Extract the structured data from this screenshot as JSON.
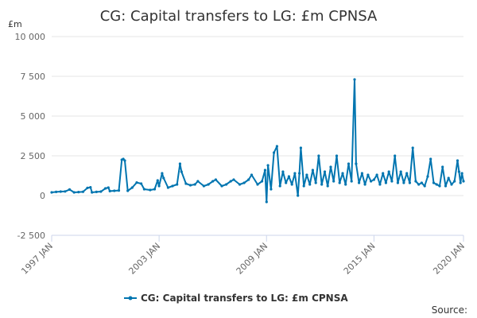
{
  "page": {
    "title": "CG: Capital transfers to LG: £m CPNSA",
    "source_label": "Source:"
  },
  "colors": {
    "series": "#0075b0",
    "grid": "#e6e6e6",
    "axis": "#ccd6eb",
    "text": "#333333",
    "tick_text": "#666666"
  },
  "chart_data": {
    "type": "line",
    "title": "CG: Capital transfers to LG: £m CPNSA",
    "ylabel": "£m",
    "xlabel": "",
    "ylim": [
      -2500,
      10000
    ],
    "yticks": [
      -2500,
      0,
      2500,
      5000,
      7500,
      10000
    ],
    "ytick_labels": [
      "-2 500",
      "0",
      "2 500",
      "5 000",
      "7 500",
      "10 000"
    ],
    "xlim": [
      "1997-01",
      "2020-01"
    ],
    "xticks": [
      "1997-01",
      "2003-01",
      "2009-01",
      "2015-01",
      "2020-01"
    ],
    "xtick_labels": [
      "1997 JAN",
      "2003 JAN",
      "2009 JAN",
      "2015 JAN",
      "2020 JAN"
    ],
    "grid": true,
    "legend_position": "bottom-center",
    "series": [
      {
        "name": "CG: Capital transfers to LG: £m CPNSA",
        "color": "#0075b0",
        "points": [
          [
            "1997-01",
            200
          ],
          [
            "1997-04",
            230
          ],
          [
            "1997-07",
            250
          ],
          [
            "1997-10",
            260
          ],
          [
            "1998-01",
            380
          ],
          [
            "1998-04",
            200
          ],
          [
            "1998-07",
            220
          ],
          [
            "1998-10",
            240
          ],
          [
            "1999-01",
            480
          ],
          [
            "1999-03",
            520
          ],
          [
            "1999-04",
            200
          ],
          [
            "1999-07",
            230
          ],
          [
            "1999-10",
            250
          ],
          [
            "2000-01",
            450
          ],
          [
            "2000-03",
            500
          ],
          [
            "2000-04",
            280
          ],
          [
            "2000-07",
            300
          ],
          [
            "2000-10",
            320
          ],
          [
            "2000-12",
            2250
          ],
          [
            "2001-01",
            2300
          ],
          [
            "2001-02",
            2200
          ],
          [
            "2001-04",
            300
          ],
          [
            "2001-07",
            500
          ],
          [
            "2001-10",
            820
          ],
          [
            "2002-01",
            750
          ],
          [
            "2002-03",
            400
          ],
          [
            "2002-07",
            350
          ],
          [
            "2002-10",
            400
          ],
          [
            "2002-12",
            950
          ],
          [
            "2003-01",
            600
          ],
          [
            "2003-03",
            1400
          ],
          [
            "2003-04",
            1100
          ],
          [
            "2003-07",
            500
          ],
          [
            "2003-10",
            600
          ],
          [
            "2004-01",
            700
          ],
          [
            "2004-03",
            2000
          ],
          [
            "2004-04",
            1500
          ],
          [
            "2004-07",
            750
          ],
          [
            "2004-10",
            650
          ],
          [
            "2005-01",
            700
          ],
          [
            "2005-03",
            900
          ],
          [
            "2005-07",
            600
          ],
          [
            "2005-10",
            700
          ],
          [
            "2006-01",
            900
          ],
          [
            "2006-03",
            1000
          ],
          [
            "2006-07",
            600
          ],
          [
            "2006-10",
            700
          ],
          [
            "2007-01",
            900
          ],
          [
            "2007-03",
            1000
          ],
          [
            "2007-07",
            700
          ],
          [
            "2007-10",
            800
          ],
          [
            "2008-01",
            1000
          ],
          [
            "2008-03",
            1300
          ],
          [
            "2008-07",
            700
          ],
          [
            "2008-10",
            900
          ],
          [
            "2008-12",
            1600
          ],
          [
            "2009-01",
            -400
          ],
          [
            "2009-02",
            1900
          ],
          [
            "2009-04",
            400
          ],
          [
            "2009-06",
            2700
          ],
          [
            "2009-08",
            3100
          ],
          [
            "2009-10",
            600
          ],
          [
            "2009-12",
            1500
          ],
          [
            "2010-02",
            800
          ],
          [
            "2010-04",
            1200
          ],
          [
            "2010-06",
            700
          ],
          [
            "2010-08",
            1400
          ],
          [
            "2010-10",
            0
          ],
          [
            "2010-11",
            1400
          ],
          [
            "2010-12",
            3000
          ],
          [
            "2011-02",
            600
          ],
          [
            "2011-04",
            1300
          ],
          [
            "2011-06",
            700
          ],
          [
            "2011-08",
            1600
          ],
          [
            "2011-10",
            800
          ],
          [
            "2011-12",
            2500
          ],
          [
            "2012-02",
            700
          ],
          [
            "2012-04",
            1500
          ],
          [
            "2012-06",
            600
          ],
          [
            "2012-08",
            1800
          ],
          [
            "2012-10",
            900
          ],
          [
            "2012-12",
            2500
          ],
          [
            "2013-02",
            800
          ],
          [
            "2013-04",
            1400
          ],
          [
            "2013-06",
            700
          ],
          [
            "2013-08",
            2000
          ],
          [
            "2013-10",
            900
          ],
          [
            "2013-12",
            7300
          ],
          [
            "2014-01",
            2000
          ],
          [
            "2014-03",
            800
          ],
          [
            "2014-05",
            1400
          ],
          [
            "2014-07",
            700
          ],
          [
            "2014-09",
            1300
          ],
          [
            "2014-11",
            900
          ],
          [
            "2015-01",
            1000
          ],
          [
            "2015-03",
            1300
          ],
          [
            "2015-05",
            700
          ],
          [
            "2015-07",
            1400
          ],
          [
            "2015-09",
            800
          ],
          [
            "2015-11",
            1500
          ],
          [
            "2016-01",
            900
          ],
          [
            "2016-03",
            2500
          ],
          [
            "2016-05",
            800
          ],
          [
            "2016-07",
            1500
          ],
          [
            "2016-09",
            800
          ],
          [
            "2016-11",
            1400
          ],
          [
            "2017-01",
            800
          ],
          [
            "2017-03",
            3000
          ],
          [
            "2017-05",
            900
          ],
          [
            "2017-07",
            700
          ],
          [
            "2017-09",
            800
          ],
          [
            "2017-11",
            600
          ],
          [
            "2018-01",
            1200
          ],
          [
            "2018-03",
            2300
          ],
          [
            "2018-05",
            800
          ],
          [
            "2018-07",
            700
          ],
          [
            "2018-09",
            600
          ],
          [
            "2018-11",
            1800
          ],
          [
            "2019-01",
            600
          ],
          [
            "2019-03",
            1100
          ],
          [
            "2019-05",
            700
          ],
          [
            "2019-07",
            900
          ],
          [
            "2019-09",
            2200
          ],
          [
            "2019-10",
            1500
          ],
          [
            "2019-11",
            800
          ],
          [
            "2019-12",
            1400
          ],
          [
            "2020-01",
            900
          ]
        ]
      }
    ]
  }
}
